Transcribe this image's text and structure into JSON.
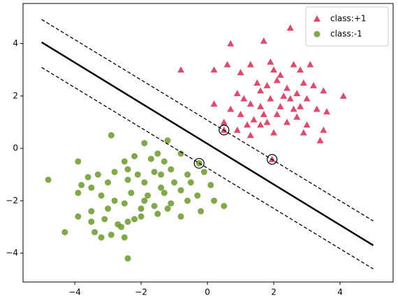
{
  "chart_data": {
    "type": "scatter",
    "xlim": [
      -5.56,
      5.6
    ],
    "ylim": [
      -5.1,
      5.53
    ],
    "xticks": [
      {
        "value": -4,
        "label": "−4"
      },
      {
        "value": -2,
        "label": "−2"
      },
      0,
      2,
      4
    ],
    "yticks": [
      {
        "value": -4,
        "label": "−4"
      },
      {
        "value": -2,
        "label": "−2"
      },
      0,
      2,
      4
    ],
    "legend": "upper right",
    "series": [
      {
        "name": "class:+1",
        "color": "#d62c55",
        "marker": "triangle",
        "x": [
          2.5,
          1.7,
          0.7,
          -0.8,
          0.2,
          0.6,
          1.0,
          1.3,
          1.9,
          2.0,
          2.2,
          2.6,
          2.8,
          3.1,
          1.5,
          1.6,
          1.8,
          2.1,
          2.4,
          2.7,
          2.9,
          3.2,
          3.5,
          4.1,
          0.9,
          1.1,
          1.3,
          1.6,
          1.9,
          2.2,
          2.5,
          2.8,
          3.0,
          3.3,
          0.2,
          0.7,
          1.0,
          1.4,
          1.8,
          2.1,
          2.4,
          2.7,
          3.0,
          3.5,
          0.5,
          0.9,
          1.2,
          1.6,
          2.0,
          3.4,
          2.9,
          1.3,
          0.5,
          1.95,
          3.6,
          2.3,
          1.7,
          2.6
        ],
        "y": [
          4.6,
          4.1,
          4.0,
          3.0,
          3.0,
          3.2,
          2.9,
          3.2,
          3.3,
          3.0,
          2.8,
          3.2,
          3.0,
          3.2,
          2.5,
          2.2,
          2.4,
          2.6,
          2.3,
          2.1,
          2.5,
          2.4,
          2.2,
          2.0,
          2.1,
          1.9,
          1.7,
          1.6,
          1.9,
          1.6,
          1.9,
          1.6,
          1.9,
          1.5,
          1.7,
          1.5,
          1.3,
          1.1,
          1.0,
          1.3,
          1.0,
          1.2,
          0.9,
          0.7,
          1.0,
          0.7,
          0.9,
          0.9,
          0.6,
          0.3,
          0.6,
          0.5,
          0.7,
          -0.42,
          1.4,
          2.0,
          1.3,
          1.5
        ]
      },
      {
        "name": "class:-1",
        "color": "#6b9a2c",
        "marker": "circle",
        "x": [
          -2.9,
          -1.9,
          -1.5,
          -1.2,
          -0.8,
          -1.3,
          -1.7,
          -2.2,
          -2.5,
          -3.9,
          -4.8,
          -3.6,
          -3.3,
          -2.8,
          -2.4,
          -2.1,
          -1.6,
          -1.1,
          -0.6,
          -0.1,
          0.1,
          -0.5,
          -1.0,
          -1.4,
          -1.9,
          -2.4,
          -3.0,
          -3.5,
          -3.8,
          -3.9,
          -3.2,
          -2.8,
          -2.3,
          -1.8,
          -1.3,
          -0.8,
          -0.3,
          0.2,
          0.5,
          -0.6,
          -1.1,
          -1.6,
          -2.0,
          -2.5,
          -3.0,
          -3.5,
          -3.9,
          -3.5,
          -3.1,
          -2.7,
          -2.4,
          -2.0,
          -1.5,
          -1.2,
          -0.8,
          -0.2,
          -4.3,
          -3.4,
          -2.9,
          -2.6,
          -3.2,
          -2.5,
          -2.4,
          -2.2,
          -0.25,
          -1.4,
          -1.9
        ],
        "y": [
          0.5,
          0.2,
          -0.2,
          0.3,
          -0.2,
          -0.5,
          -0.4,
          -0.3,
          -0.5,
          -0.5,
          -1.2,
          -1.1,
          -1.0,
          -0.9,
          -0.8,
          -1.0,
          -0.9,
          -0.8,
          -1.0,
          -0.9,
          -1.4,
          -1.3,
          -1.3,
          -1.5,
          -1.3,
          -1.2,
          -1.3,
          -1.5,
          -1.4,
          -1.7,
          -1.8,
          -2.0,
          -1.7,
          -1.8,
          -1.7,
          -1.6,
          -1.8,
          -2.0,
          -2.2,
          -2.0,
          -2.1,
          -2.2,
          -2.3,
          -2.1,
          -2.3,
          -2.4,
          -2.6,
          -2.8,
          -2.7,
          -2.9,
          -2.8,
          -2.6,
          -2.5,
          -2.3,
          -2.6,
          -2.4,
          -3.2,
          -3.2,
          -3.3,
          -3.0,
          -3.4,
          -3.4,
          -4.2,
          -2.7,
          -0.57,
          -1.0,
          -2.0
        ]
      }
    ],
    "lines": [
      {
        "style": "solid",
        "x": [
          -5,
          5
        ],
        "y": [
          4.05,
          -3.7
        ]
      },
      {
        "style": "dashed",
        "x": [
          -5,
          5
        ],
        "y": [
          4.92,
          -2.77
        ]
      },
      {
        "style": "dashed",
        "x": [
          -5,
          5
        ],
        "y": [
          3.09,
          -4.6
        ]
      }
    ],
    "support_vectors": {
      "x": [
        0.5,
        1.95,
        -0.25
      ],
      "y": [
        0.7,
        -0.42,
        -0.57
      ]
    }
  }
}
